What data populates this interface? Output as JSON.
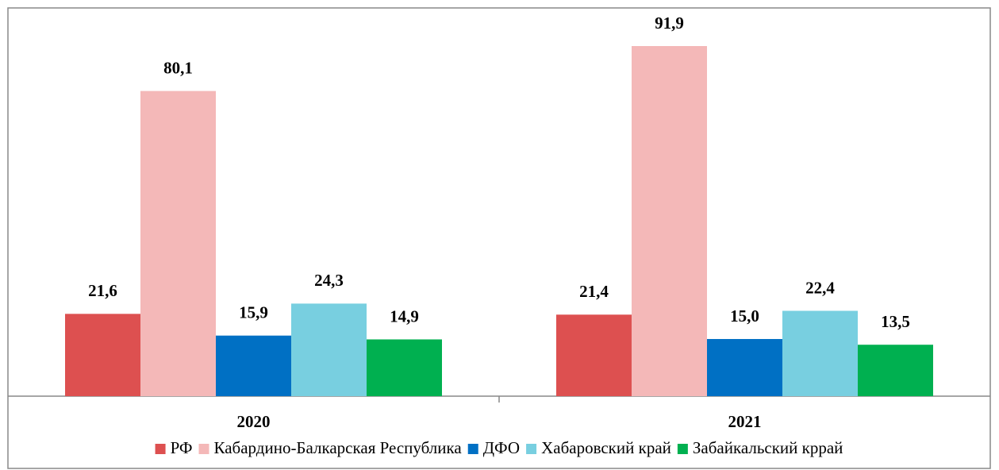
{
  "chart_data": {
    "type": "bar",
    "categories": [
      "2020",
      "2021"
    ],
    "series": [
      {
        "name": "РФ",
        "color": "#dd5050",
        "values": [
          21.6,
          21.4
        ]
      },
      {
        "name": "Кабардино-Балкарская Республика",
        "color": "#f4b8b8",
        "values": [
          80.1,
          91.9
        ]
      },
      {
        "name": "ДФО",
        "color": "#0070c4",
        "values": [
          15.9,
          15.0
        ],
        "value_labels": [
          "15,9",
          "15,0"
        ]
      },
      {
        "name": "Хабаровский край",
        "color": "#78cfe0",
        "values": [
          24.3,
          22.4
        ]
      },
      {
        "name": "Забайкальский кррай",
        "color": "#00b050",
        "values": [
          14.9,
          13.5
        ]
      }
    ],
    "value_labels_all": null,
    "legend": "bottom"
  }
}
